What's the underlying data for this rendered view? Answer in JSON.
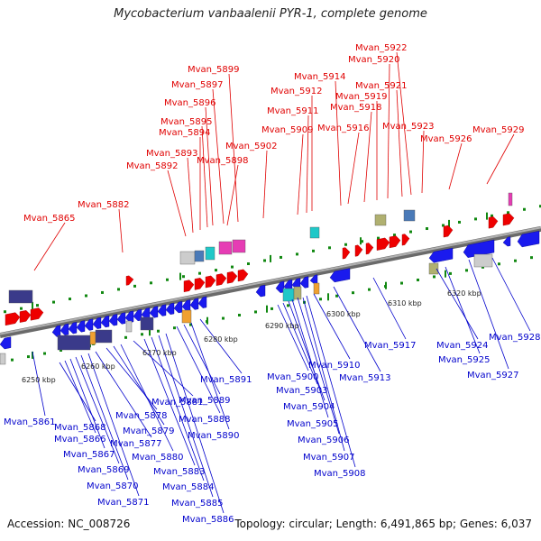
{
  "title": "Mycobacterium vanbaalenii PYR-1, complete genome",
  "footer": {
    "accession": "Accession: NC_008726",
    "summary": "Topology: circular; Length: 6,491,865 bp; Genes: 6,037"
  },
  "colors": {
    "forward_label": "#e00000",
    "reverse_label": "#0000cc",
    "backbone": "#888888",
    "tick": "#118811",
    "forward_gene": "#ee0000",
    "reverse_gene": "#1a1aee",
    "operon": "#3a3a8a",
    "rna_pink": "#e63cb4",
    "rna_cyan": "#20c8c8",
    "steel": "#4a7ab8",
    "olive": "#b0b070",
    "gray": "#cccccc",
    "orange": "#f0a030"
  },
  "scale_labels": [
    "6250 kbp",
    "6260 kbp",
    "6270 kbp",
    "6280 kbp",
    "6290 kbp",
    "6300 kbp",
    "6310 kbp",
    "6320 kbp"
  ],
  "forward_labels": [
    "Mvan_5865",
    "Mvan_5882",
    "Mvan_5892",
    "Mvan_5893",
    "Mvan_5894",
    "Mvan_5895",
    "Mvan_5896",
    "Mvan_5897",
    "Mvan_5899",
    "Mvan_5898",
    "Mvan_5902",
    "Mvan_5909",
    "Mvan_5911",
    "Mvan_5912",
    "Mvan_5914",
    "Mvan_5916",
    "Mvan_5918",
    "Mvan_5919",
    "Mvan_5920",
    "Mvan_5921",
    "Mvan_5922",
    "Mvan_5923",
    "Mvan_5926",
    "Mvan_5929"
  ],
  "reverse_labels": [
    "Mvan_5861",
    "Mvan_5868",
    "Mvan_5866",
    "Mvan_5867",
    "Mvan_5869",
    "Mvan_5870",
    "Mvan_5871",
    "Mvan_5877",
    "Mvan_5878",
    "Mvan_5879",
    "Mvan_5880",
    "Mvan_5881",
    "Mvan_5883",
    "Mvan_5884",
    "Mvan_5885",
    "Mvan_5886",
    "Mvan_5888",
    "Mvan_5889",
    "Mvan_5890",
    "Mvan_5891",
    "Mvan_5900",
    "Mvan_5903",
    "Mvan_5904",
    "Mvan_5905",
    "Mvan_5906",
    "Mvan_5907",
    "Mvan_5908",
    "Mvan_5910",
    "Mvan_5913",
    "Mvan_5917",
    "Mvan_5924",
    "Mvan_5925",
    "Mvan_5927",
    "Mvan_5928"
  ]
}
